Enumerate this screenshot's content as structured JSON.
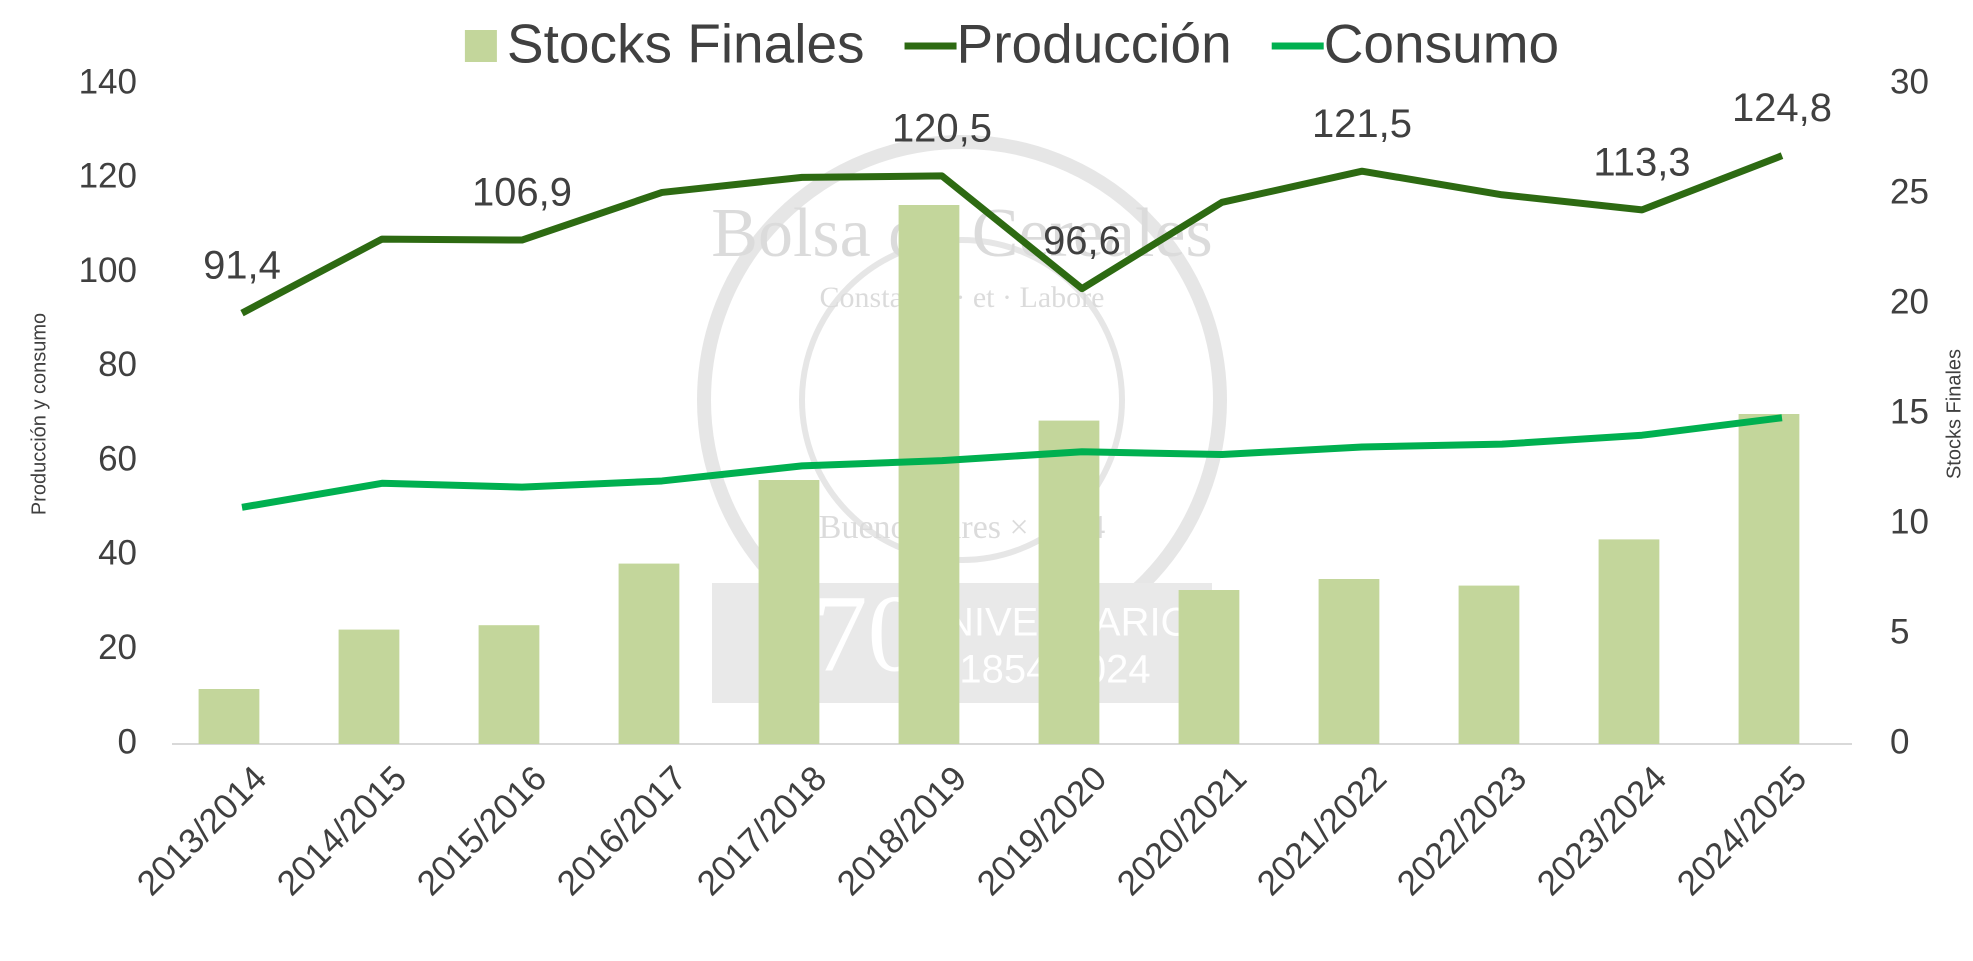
{
  "chart_data": {
    "type": "bar-line",
    "categories": [
      "2013/2014",
      "2014/2015",
      "2015/2016",
      "2016/2017",
      "2017/2018",
      "2018/2019",
      "2019/2020",
      "2020/2021",
      "2021/2022",
      "2022/2023",
      "2023/2024",
      "2024/2025"
    ],
    "series": [
      {
        "name": "Stocks Finales",
        "type": "bar",
        "axis": "y2",
        "color": "#c3d69b",
        "values": [
          2.5,
          5.2,
          5.4,
          8.2,
          12.0,
          24.5,
          14.7,
          7.0,
          7.5,
          7.2,
          9.3,
          15.0
        ]
      },
      {
        "name": "Producción",
        "type": "line",
        "color": "#2d6a12",
        "values": [
          91.4,
          107.1,
          106.9,
          117.0,
          120.2,
          120.5,
          96.6,
          114.9,
          121.5,
          116.5,
          113.3,
          124.8
        ],
        "value_labels": [
          "91,4",
          null,
          "106,9",
          null,
          null,
          "120,5",
          "96,6",
          null,
          "121,5",
          null,
          "113,3",
          "124,8"
        ]
      },
      {
        "name": "Consumo",
        "type": "line",
        "color": "#00b050",
        "values": [
          50.2,
          55.3,
          54.5,
          55.8,
          59.0,
          60.1,
          62.0,
          61.4,
          63.0,
          63.6,
          65.5,
          69.2
        ]
      }
    ],
    "ylabel": "Producción y consumo",
    "y2label": "Stocks Finales",
    "ylim": [
      0,
      140
    ],
    "yticks": [
      0,
      20,
      40,
      60,
      80,
      100,
      120,
      140
    ],
    "y2lim": [
      0,
      30
    ],
    "y2ticks": [
      0,
      5,
      10,
      15,
      20,
      25,
      30
    ],
    "legend": "top",
    "watermark": {
      "name": "Bolsa de Cereales",
      "motto": "Constantia · et · Labore",
      "city": "Buenos Aires × 1854",
      "number": "170",
      "word": "ANIVERSARIO",
      "years": "1854-2024"
    }
  }
}
